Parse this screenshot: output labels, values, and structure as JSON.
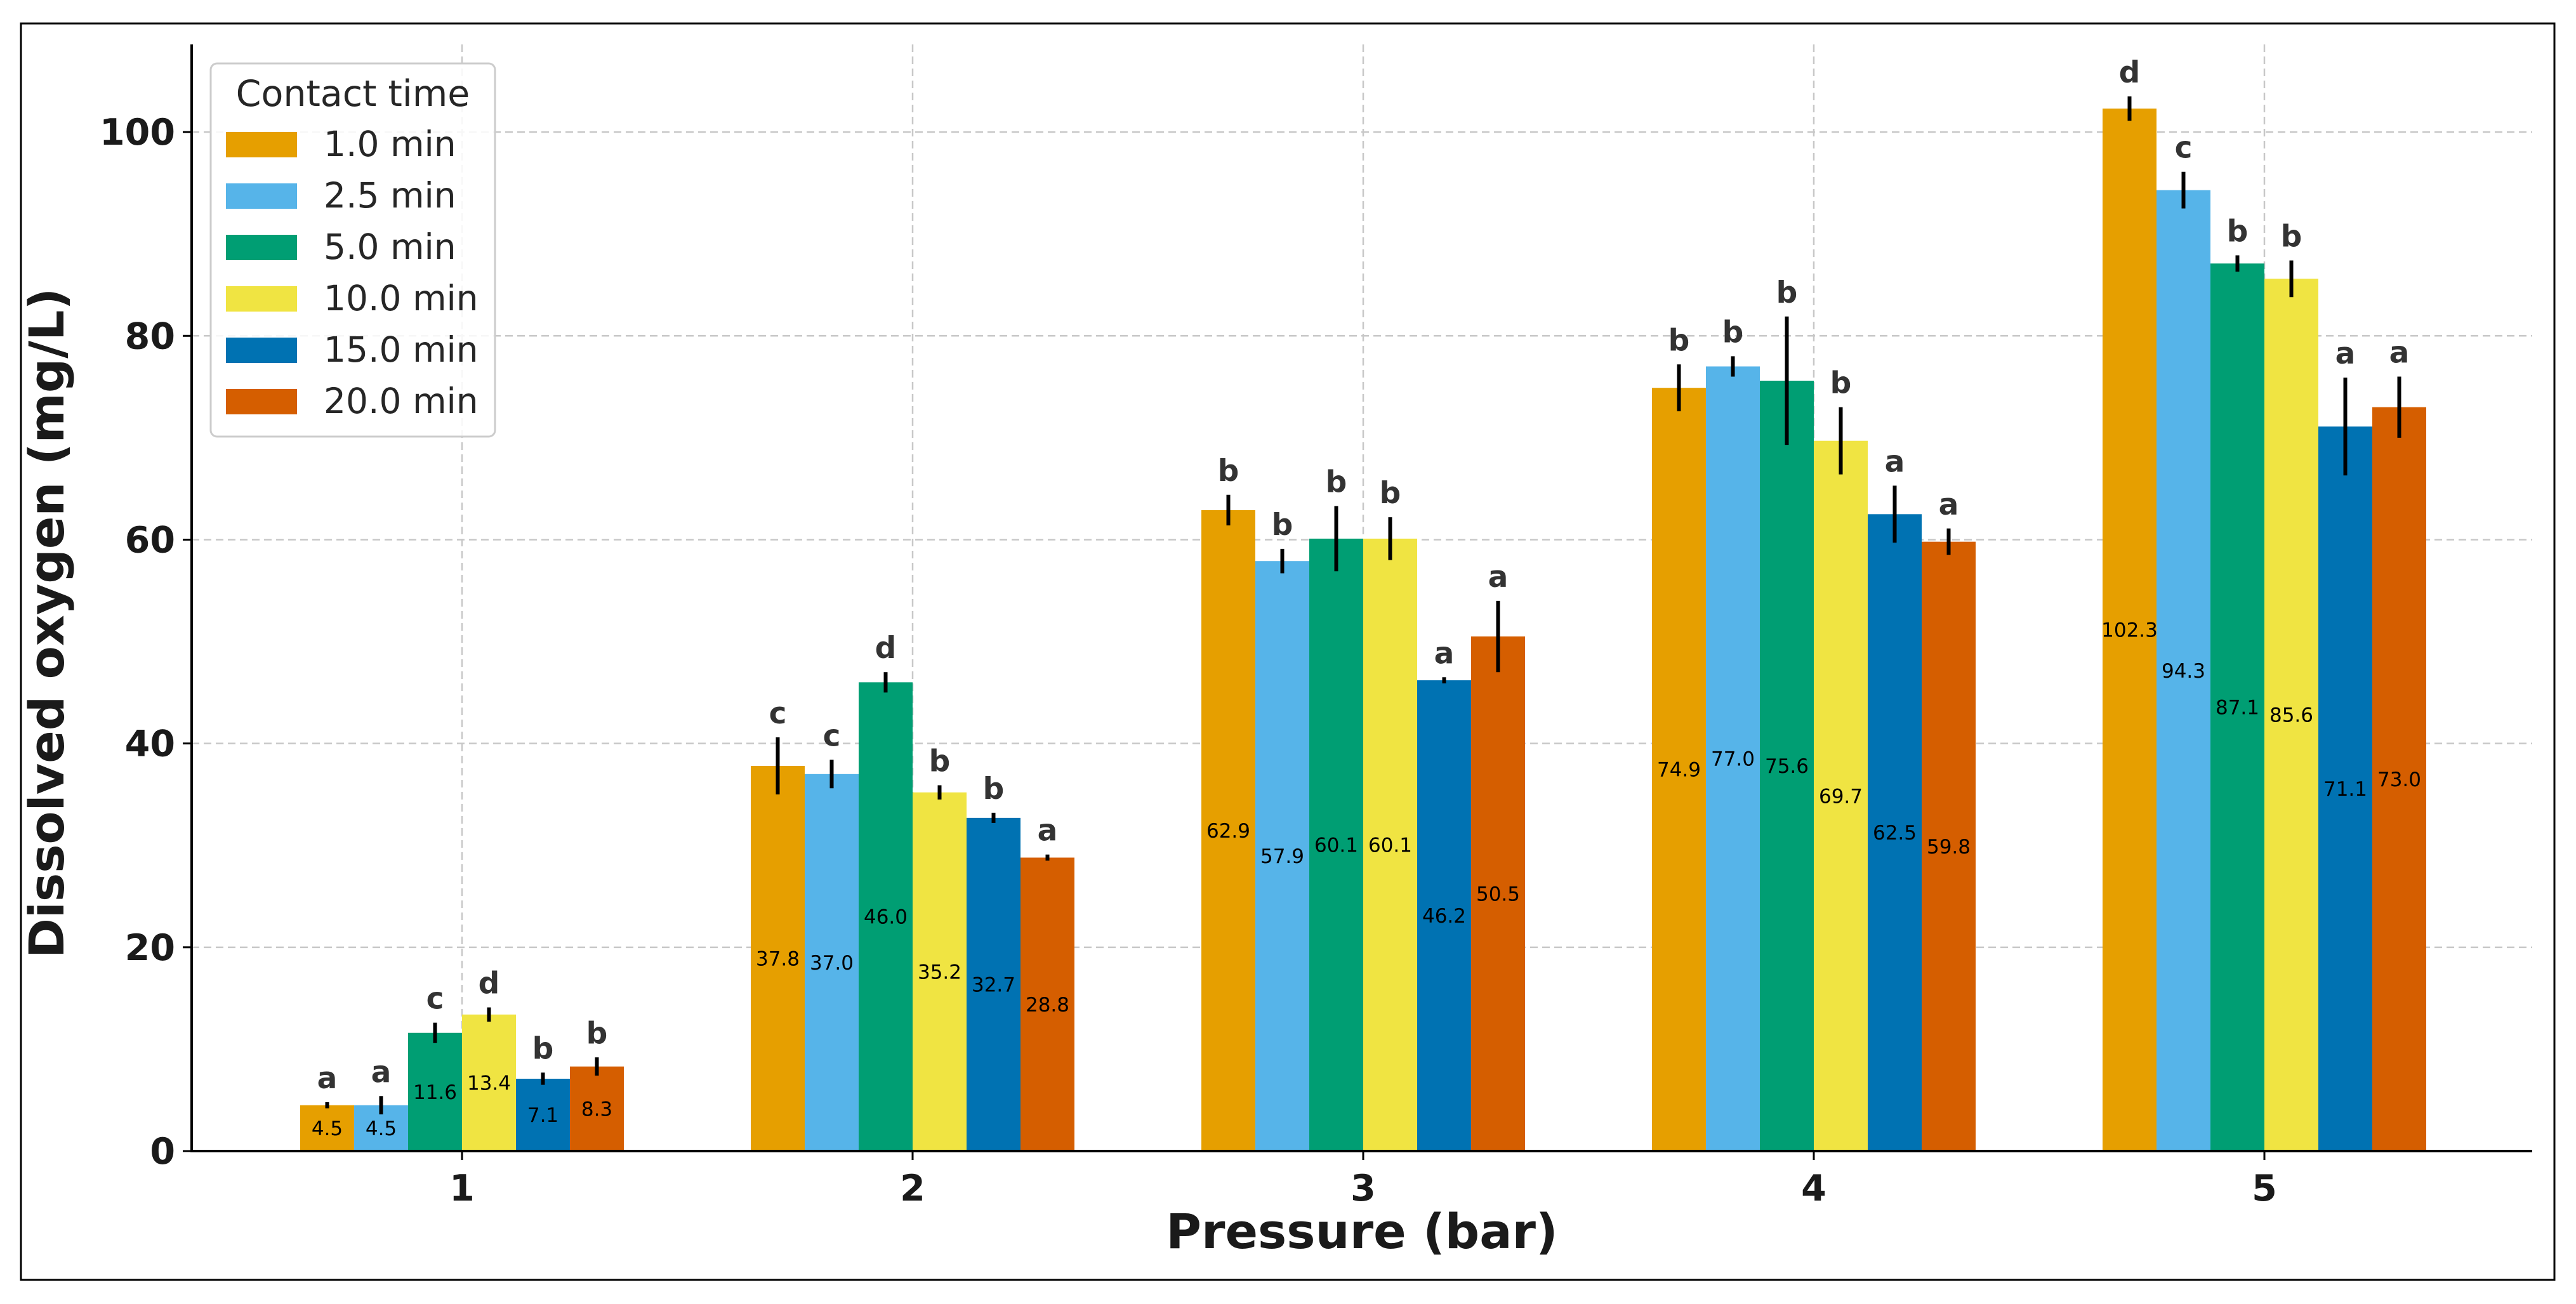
{
  "chart_data": {
    "type": "bar",
    "title": "",
    "xlabel": "Pressure (bar)",
    "ylabel": "Dissolved oxygen (mg/L)",
    "categories": [
      "1",
      "2",
      "3",
      "4",
      "5"
    ],
    "ylim": [
      0,
      108.6
    ],
    "yticks": [
      0,
      20,
      40,
      60,
      80,
      100
    ],
    "grid": true,
    "legend": {
      "title": "Contact time",
      "position": "top-left"
    },
    "series": [
      {
        "name": "1.0 min",
        "color": "#E69F00",
        "values": [
          4.5,
          37.8,
          62.9,
          74.9,
          102.3
        ],
        "errors": [
          0.3,
          2.8,
          1.5,
          2.3,
          1.2
        ],
        "value_labels": [
          "4.5",
          "37.8",
          "62.9",
          "74.9",
          "102.3"
        ],
        "letters": [
          "a",
          "c",
          "b",
          "b",
          "d"
        ]
      },
      {
        "name": "2.5 min",
        "color": "#56B4E9",
        "values": [
          4.5,
          37.0,
          57.9,
          77.0,
          94.3
        ],
        "errors": [
          0.9,
          1.4,
          1.2,
          1.0,
          1.8
        ],
        "value_labels": [
          "4.5",
          "37.0",
          "57.9",
          "77.0",
          "94.3"
        ],
        "letters": [
          "a",
          "c",
          "b",
          "b",
          "c"
        ]
      },
      {
        "name": "5.0 min",
        "color": "#009E73",
        "values": [
          11.6,
          46.0,
          60.1,
          75.6,
          87.1
        ],
        "errors": [
          1.0,
          1.0,
          3.2,
          6.3,
          0.8
        ],
        "value_labels": [
          "11.6",
          "46.0",
          "60.1",
          "75.6",
          "87.1"
        ],
        "letters": [
          "c",
          "d",
          "b",
          "b",
          "b"
        ]
      },
      {
        "name": "10.0 min",
        "color": "#F0E442",
        "values": [
          13.4,
          35.2,
          60.1,
          69.7,
          85.6
        ],
        "errors": [
          0.7,
          0.7,
          2.1,
          3.3,
          1.8
        ],
        "value_labels": [
          "13.4",
          "35.2",
          "60.1",
          "69.7",
          "85.6"
        ],
        "letters": [
          "d",
          "b",
          "b",
          "b",
          "b"
        ]
      },
      {
        "name": "15.0 min",
        "color": "#0072B2",
        "values": [
          7.1,
          32.7,
          46.2,
          62.5,
          71.1
        ],
        "errors": [
          0.6,
          0.5,
          0.3,
          2.8,
          4.8
        ],
        "value_labels": [
          "7.1",
          "32.7",
          "46.2",
          "62.5",
          "71.1"
        ],
        "letters": [
          "b",
          "b",
          "a",
          "a",
          "a"
        ]
      },
      {
        "name": "20.0 min",
        "color": "#D55E00",
        "values": [
          8.3,
          28.8,
          50.5,
          59.8,
          73.0
        ],
        "errors": [
          0.9,
          0.3,
          3.5,
          1.3,
          3.0
        ],
        "value_labels": [
          "8.3",
          "28.8",
          "50.5",
          "59.8",
          "73.0"
        ],
        "letters": [
          "b",
          "a",
          "a",
          "a",
          "a"
        ]
      }
    ]
  }
}
